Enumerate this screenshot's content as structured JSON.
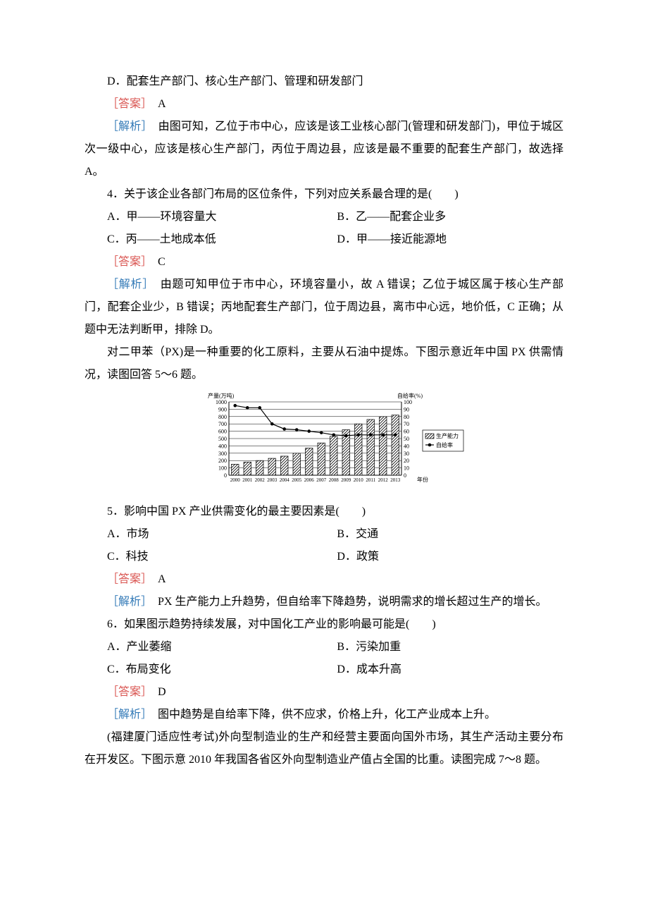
{
  "p_d": "D．配套生产部门、核心生产部门、管理和研发部门",
  "ans3_label": "［答案］",
  "ans3_val": "　A",
  "ana3_label": "［解析］",
  "ana3_text": "　由图可知，乙位于市中心，应该是该工业核心部门(管理和研发部门)，甲位于城区次一级中心，应该是核心生产部门，丙位于周边县，应该是最不重要的配套生产部门，故选择 A。",
  "q4_stem": "4．关于该企业各部门布局的区位条件，下列对应关系最合理的是(　　)",
  "q4_a": "A．甲——环境容量大",
  "q4_b": "B．乙——配套企业多",
  "q4_c": "C．丙——土地成本低",
  "q4_d": "D．甲——接近能源地",
  "ans4_label": "［答案］",
  "ans4_val": "　C",
  "ana4_label": "［解析］",
  "ana4_text": "　由题可知甲位于市中心，环境容量小，故 A 错误；乙位于城区属于核心生产部门，配套企业少，B 错误；丙地配套生产部门，位于周边县，离市中心远，地价低，C 正确；从题中无法判断甲，排除 D。",
  "px_intro": "对二甲苯（PX)是一种重要的化工原料，主要从石油中提炼。下图示意近年中国 PX 供需情况，读图回答 5～6 题。",
  "chart": {
    "type": "bar+line",
    "y1_label": "产量(万吨)",
    "y2_label": "自给率(%)",
    "x_label": "年份",
    "legend_bar": "生产能力",
    "legend_line": "自给率",
    "years": [
      "2000",
      "2001",
      "2002",
      "2003",
      "2004",
      "2005",
      "2006",
      "2007",
      "2008",
      "2009",
      "2010",
      "2011",
      "2012",
      "2013"
    ],
    "capacity": [
      150,
      180,
      200,
      230,
      260,
      300,
      370,
      440,
      530,
      620,
      700,
      760,
      800,
      820
    ],
    "self_rate": [
      95,
      92,
      92,
      70,
      63,
      62,
      60,
      58,
      55,
      54,
      55,
      55,
      55,
      55
    ],
    "y1_max": 1000,
    "y1_step": 100,
    "y2_max": 100,
    "y2_step": 10,
    "colors": {
      "axis": "#000000",
      "grid": "#000000",
      "bar_fill": "#ffffff",
      "bar_stroke": "#000000",
      "line": "#000000",
      "marker": "#000000",
      "text": "#000000",
      "bg": "#ffffff"
    },
    "font_size_axis": 8,
    "font_size_title": 8,
    "bar_width_ratio": 0.6,
    "marker_size": 2.3
  },
  "q5_stem": "5．影响中国 PX 产业供需变化的最主要因素是(　　)",
  "q5_a": "A．市场",
  "q5_b": "B．交通",
  "q5_c": "C．科技",
  "q5_d": "D．政策",
  "ans5_label": "［答案］",
  "ans5_val": "　A",
  "ana5_label": "［解析］",
  "ana5_text": "　PX 生产能力上升趋势，但自给率下降趋势，说明需求的增长超过生产的增长。",
  "q6_stem": "6．如果图示趋势持续发展，对中国化工产业的影响最可能是(　　)",
  "q6_a": "A．产业萎缩",
  "q6_b": "B．污染加重",
  "q6_c": "C．布局变化",
  "q6_d": "D．成本升高",
  "ans6_label": "［答案］",
  "ans6_val": "　D",
  "ana6_label": "［解析］",
  "ana6_text": "　图中趋势是自给率下降，供不应求，价格上升，化工产业成本上升。",
  "q78_intro": "(福建厦门适应性考试)外向型制造业的生产和经营主要面向国外市场，其生产活动主要分布在开发区。下图示意 2010 年我国各省区外向型制造业产值占全国的比重。读图完成 7～8 题。"
}
